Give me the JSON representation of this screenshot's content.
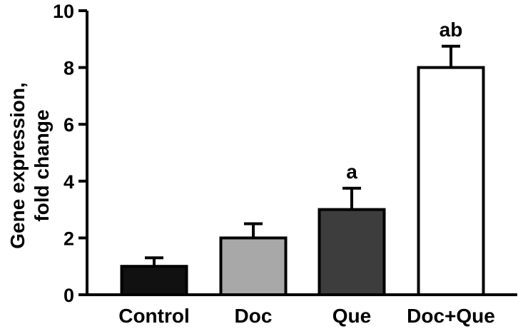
{
  "chart_data": {
    "type": "bar",
    "title": "",
    "xlabel": "",
    "ylabel_lines": [
      "Gene expression,",
      "fold change"
    ],
    "ylim": [
      0,
      10
    ],
    "yticks": [
      "0",
      "2",
      "4",
      "6",
      "8",
      "10"
    ],
    "grid": false,
    "categories": [
      "Control",
      "Doc",
      "Que",
      "Doc+Que"
    ],
    "values": [
      1.0,
      2.0,
      3.0,
      8.0
    ],
    "errors": [
      0.3,
      0.5,
      0.75,
      0.75
    ],
    "significance": [
      "",
      "",
      "a",
      "ab"
    ],
    "bar_colors": [
      "#111111",
      "#a8a8a8",
      "#3d3d3d",
      "#ffffff"
    ],
    "bar_edge_color": "#000000"
  }
}
